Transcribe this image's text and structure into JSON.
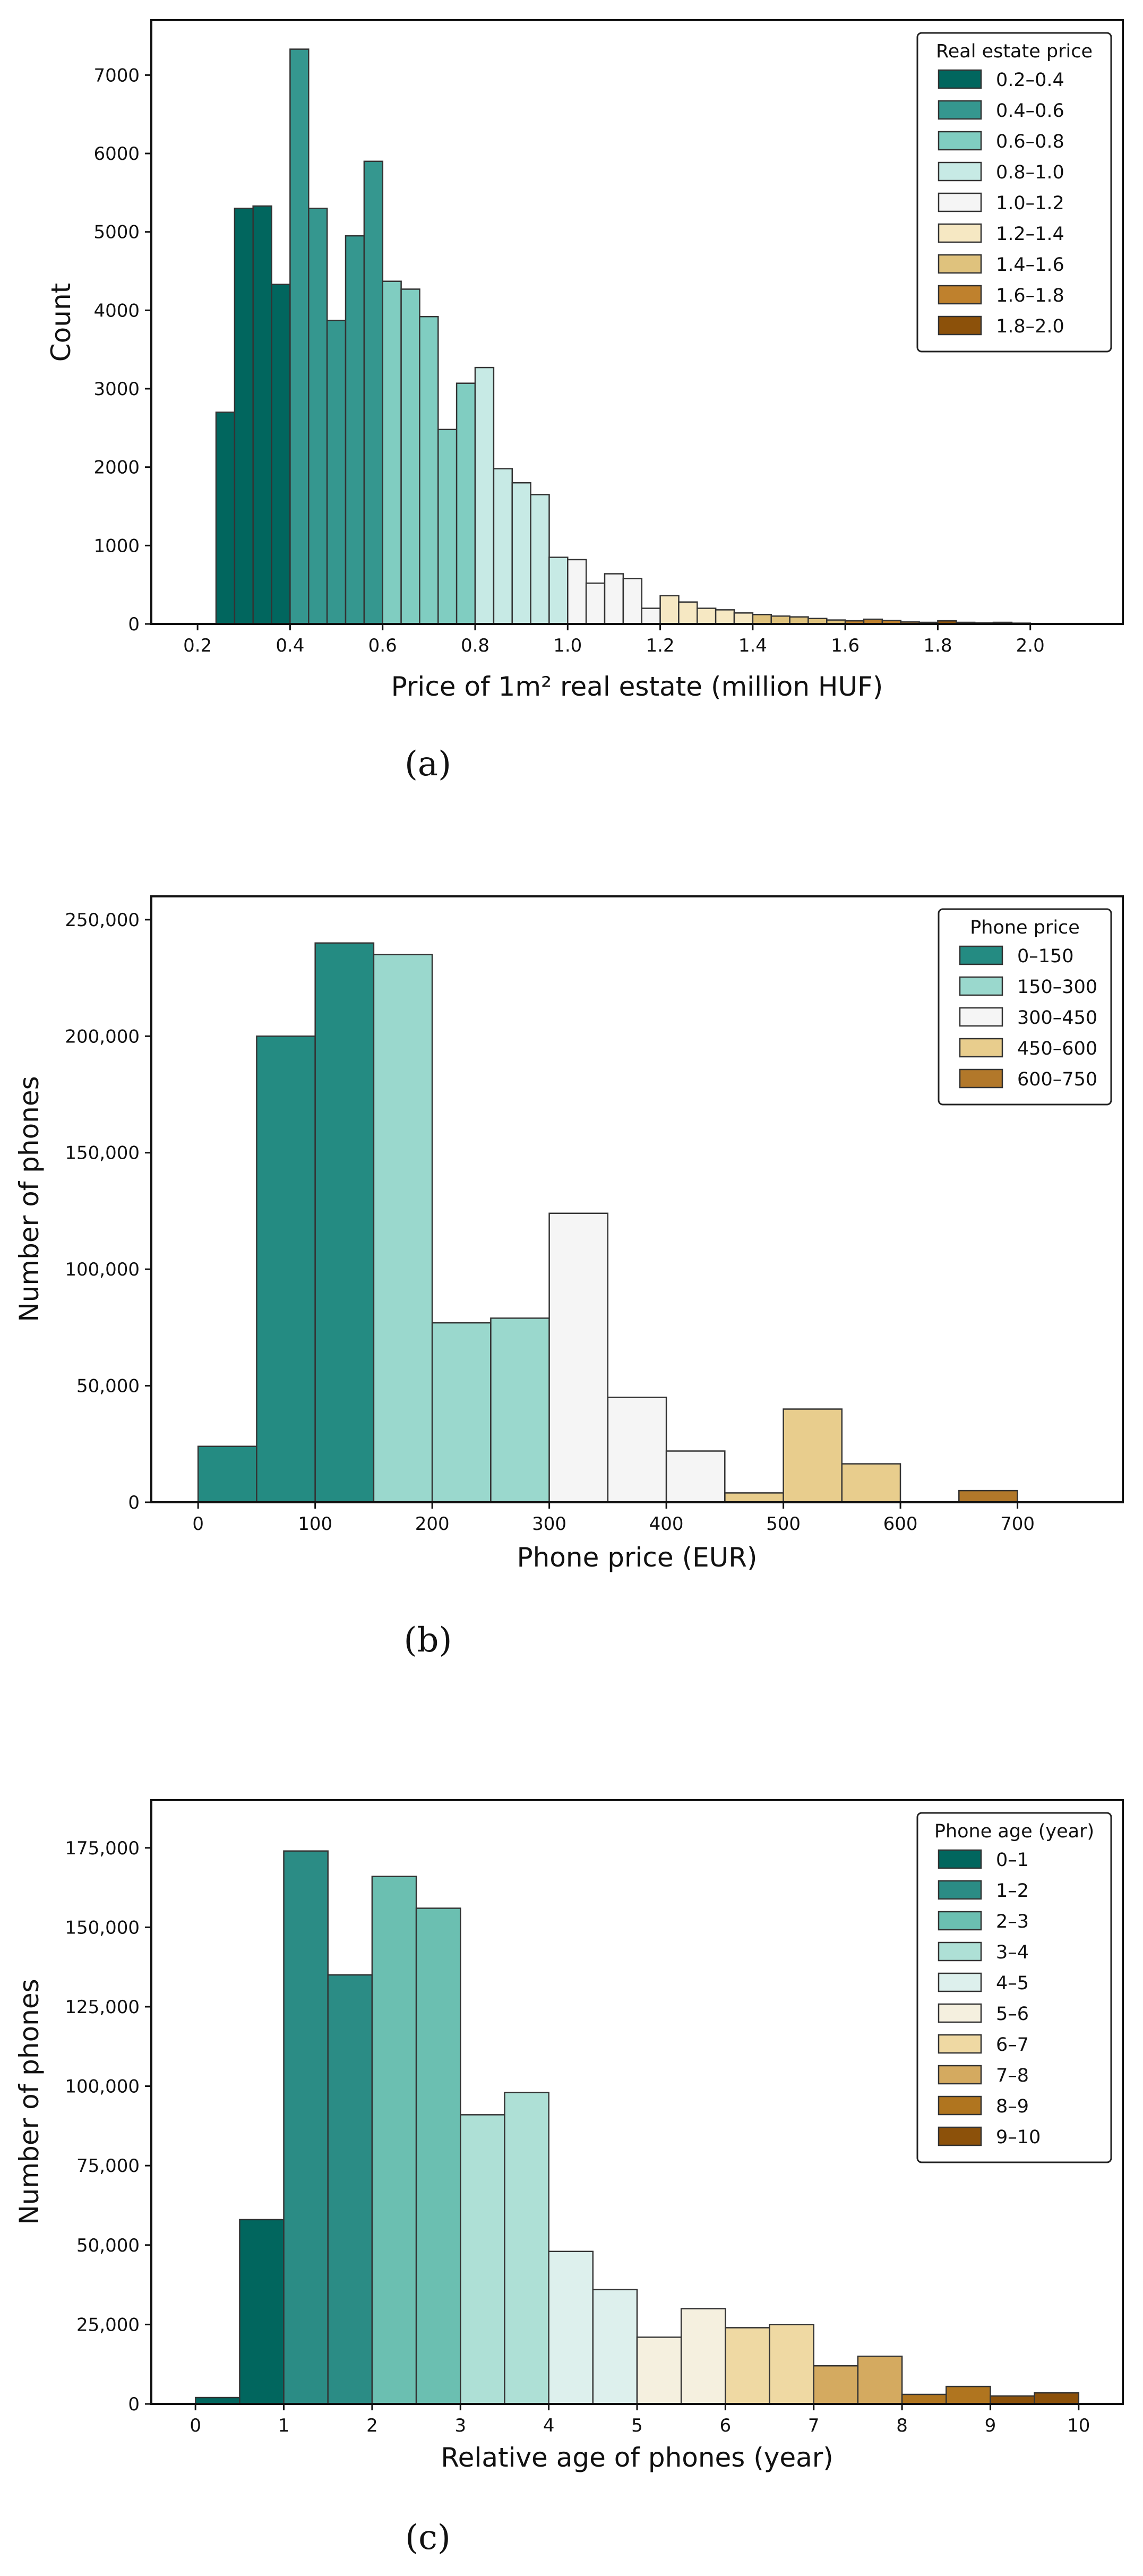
{
  "chart_data": [
    {
      "type": "bar",
      "subtype": "histogram",
      "caption": "(a)",
      "xlabel": "Price of 1m² real estate (million HUF)",
      "ylabel": "Count",
      "xlim": [
        0.1,
        2.2
      ],
      "ylim": [
        0,
        7700
      ],
      "xticks": [
        "0.2",
        "0.4",
        "0.6",
        "0.8",
        "1.0",
        "1.2",
        "1.4",
        "1.6",
        "1.8",
        "2.0"
      ],
      "yticks": [
        "0",
        "1000",
        "2000",
        "3000",
        "4000",
        "5000",
        "6000",
        "7000"
      ],
      "bin_width": 0.04,
      "legend": {
        "title": "Real estate price",
        "position": "top-right",
        "entries": [
          "0.2–0.4",
          "0.4–0.6",
          "0.6–0.8",
          "0.8–1.0",
          "1.0–1.2",
          "1.2–1.4",
          "1.4–1.6",
          "1.6–1.8",
          "1.8–2.0"
        ],
        "colors": [
          "#01665e",
          "#35978f",
          "#80cdc1",
          "#c7eae5",
          "#f5f5f5",
          "#f6e8c3",
          "#dfc27d",
          "#bf812d",
          "#8c510a"
        ]
      },
      "bars": [
        {
          "x0": 0.24,
          "y": 2700,
          "g": 0
        },
        {
          "x0": 0.28,
          "y": 5300,
          "g": 0
        },
        {
          "x0": 0.32,
          "y": 5330,
          "g": 0
        },
        {
          "x0": 0.36,
          "y": 4330,
          "g": 0
        },
        {
          "x0": 0.4,
          "y": 7330,
          "g": 1
        },
        {
          "x0": 0.44,
          "y": 5300,
          "g": 1
        },
        {
          "x0": 0.48,
          "y": 3870,
          "g": 1
        },
        {
          "x0": 0.52,
          "y": 4950,
          "g": 1
        },
        {
          "x0": 0.56,
          "y": 5900,
          "g": 1
        },
        {
          "x0": 0.6,
          "y": 4370,
          "g": 2
        },
        {
          "x0": 0.64,
          "y": 4270,
          "g": 2
        },
        {
          "x0": 0.68,
          "y": 3920,
          "g": 2
        },
        {
          "x0": 0.72,
          "y": 2480,
          "g": 2
        },
        {
          "x0": 0.76,
          "y": 3070,
          "g": 2
        },
        {
          "x0": 0.8,
          "y": 3270,
          "g": 3
        },
        {
          "x0": 0.84,
          "y": 1980,
          "g": 3
        },
        {
          "x0": 0.88,
          "y": 1800,
          "g": 3
        },
        {
          "x0": 0.92,
          "y": 1650,
          "g": 3
        },
        {
          "x0": 0.96,
          "y": 850,
          "g": 3
        },
        {
          "x0": 1.0,
          "y": 820,
          "g": 4
        },
        {
          "x0": 1.04,
          "y": 520,
          "g": 4
        },
        {
          "x0": 1.08,
          "y": 640,
          "g": 4
        },
        {
          "x0": 1.12,
          "y": 580,
          "g": 4
        },
        {
          "x0": 1.16,
          "y": 200,
          "g": 4
        },
        {
          "x0": 1.2,
          "y": 360,
          "g": 5
        },
        {
          "x0": 1.24,
          "y": 280,
          "g": 5
        },
        {
          "x0": 1.28,
          "y": 200,
          "g": 5
        },
        {
          "x0": 1.32,
          "y": 180,
          "g": 5
        },
        {
          "x0": 1.36,
          "y": 140,
          "g": 5
        },
        {
          "x0": 1.4,
          "y": 120,
          "g": 6
        },
        {
          "x0": 1.44,
          "y": 100,
          "g": 6
        },
        {
          "x0": 1.48,
          "y": 90,
          "g": 6
        },
        {
          "x0": 1.52,
          "y": 70,
          "g": 6
        },
        {
          "x0": 1.56,
          "y": 50,
          "g": 6
        },
        {
          "x0": 1.6,
          "y": 40,
          "g": 7
        },
        {
          "x0": 1.64,
          "y": 60,
          "g": 7
        },
        {
          "x0": 1.68,
          "y": 45,
          "g": 7
        },
        {
          "x0": 1.72,
          "y": 25,
          "g": 7
        },
        {
          "x0": 1.76,
          "y": 20,
          "g": 7
        },
        {
          "x0": 1.8,
          "y": 40,
          "g": 8
        },
        {
          "x0": 1.84,
          "y": 20,
          "g": 8
        },
        {
          "x0": 1.88,
          "y": 15,
          "g": 8
        },
        {
          "x0": 1.92,
          "y": 20,
          "g": 8
        },
        {
          "x0": 1.96,
          "y": 10,
          "g": 8
        }
      ]
    },
    {
      "type": "bar",
      "subtype": "histogram",
      "caption": "(b)",
      "xlabel": "Phone price (EUR)",
      "ylabel": "Number of phones",
      "xlim": [
        -40,
        790
      ],
      "ylim": [
        0,
        260000
      ],
      "xticks": [
        "0",
        "100",
        "200",
        "300",
        "400",
        "500",
        "600",
        "700"
      ],
      "yticks": [
        "0",
        "50,000",
        "100,000",
        "150,000",
        "200,000",
        "250,000"
      ],
      "bin_width": 50,
      "legend": {
        "title": "Phone price",
        "position": "top-right",
        "entries": [
          "0–150",
          "150–300",
          "300–450",
          "450–600",
          "600–750"
        ],
        "colors": [
          "#248b82",
          "#9ad8cd",
          "#f5f5f5",
          "#e8cd8d",
          "#b2782a"
        ]
      },
      "bars": [
        {
          "x0": 0,
          "y": 24000,
          "g": 0
        },
        {
          "x0": 50,
          "y": 200000,
          "g": 0
        },
        {
          "x0": 100,
          "y": 240000,
          "g": 0
        },
        {
          "x0": 150,
          "y": 235000,
          "g": 1
        },
        {
          "x0": 200,
          "y": 77000,
          "g": 1
        },
        {
          "x0": 250,
          "y": 79000,
          "g": 1
        },
        {
          "x0": 300,
          "y": 124000,
          "g": 2
        },
        {
          "x0": 350,
          "y": 45000,
          "g": 2
        },
        {
          "x0": 400,
          "y": 22000,
          "g": 2
        },
        {
          "x0": 450,
          "y": 4000,
          "g": 3
        },
        {
          "x0": 500,
          "y": 40000,
          "g": 3
        },
        {
          "x0": 550,
          "y": 16500,
          "g": 3
        },
        {
          "x0": 600,
          "y": 0,
          "g": 4
        },
        {
          "x0": 650,
          "y": 5000,
          "g": 4
        },
        {
          "x0": 700,
          "y": 0,
          "g": 4
        }
      ]
    },
    {
      "type": "bar",
      "subtype": "histogram",
      "caption": "(c)",
      "xlabel": "Relative age of phones (year)",
      "ylabel": "Number of phones",
      "xlim": [
        -0.5,
        10.5
      ],
      "ylim": [
        0,
        190000
      ],
      "xticks": [
        "0",
        "1",
        "2",
        "3",
        "4",
        "5",
        "6",
        "7",
        "8",
        "9",
        "10"
      ],
      "yticks": [
        "0",
        "25,000",
        "50,000",
        "75,000",
        "100,000",
        "125,000",
        "150,000",
        "175,000"
      ],
      "bin_width": 0.5,
      "legend": {
        "title": "Phone age (year)",
        "position": "top-right",
        "entries": [
          "0–1",
          "1–2",
          "2–3",
          "3–4",
          "4–5",
          "5–6",
          "6–7",
          "7–8",
          "8–9",
          "9–10"
        ],
        "colors": [
          "#01665e",
          "#2b8c85",
          "#6bbfb1",
          "#aee0d6",
          "#ddf0ed",
          "#f5f0df",
          "#efd9a3",
          "#d4aa60",
          "#b0751f",
          "#8c510a"
        ]
      },
      "bars": [
        {
          "x0": 0.0,
          "y": 2000,
          "g": 0
        },
        {
          "x0": 0.5,
          "y": 58000,
          "g": 0
        },
        {
          "x0": 1.0,
          "y": 174000,
          "g": 1
        },
        {
          "x0": 1.5,
          "y": 135000,
          "g": 1
        },
        {
          "x0": 2.0,
          "y": 166000,
          "g": 2
        },
        {
          "x0": 2.5,
          "y": 156000,
          "g": 2
        },
        {
          "x0": 3.0,
          "y": 91000,
          "g": 3
        },
        {
          "x0": 3.5,
          "y": 98000,
          "g": 3
        },
        {
          "x0": 4.0,
          "y": 48000,
          "g": 4
        },
        {
          "x0": 4.5,
          "y": 36000,
          "g": 4
        },
        {
          "x0": 5.0,
          "y": 21000,
          "g": 5
        },
        {
          "x0": 5.5,
          "y": 30000,
          "g": 5
        },
        {
          "x0": 6.0,
          "y": 24000,
          "g": 6
        },
        {
          "x0": 6.5,
          "y": 25000,
          "g": 6
        },
        {
          "x0": 7.0,
          "y": 12000,
          "g": 7
        },
        {
          "x0": 7.5,
          "y": 15000,
          "g": 7
        },
        {
          "x0": 8.0,
          "y": 3000,
          "g": 8
        },
        {
          "x0": 8.5,
          "y": 5500,
          "g": 8
        },
        {
          "x0": 9.0,
          "y": 2500,
          "g": 9
        },
        {
          "x0": 9.5,
          "y": 3500,
          "g": 9
        }
      ]
    }
  ]
}
